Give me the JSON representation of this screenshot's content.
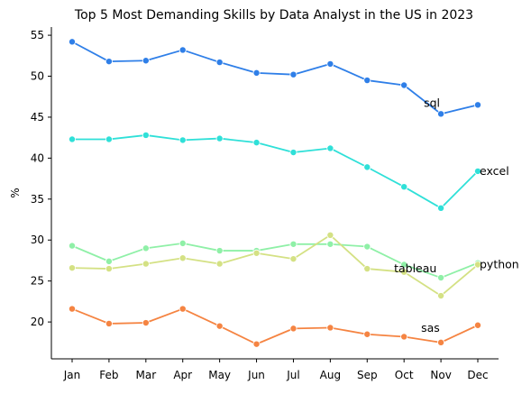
{
  "chart_data": {
    "type": "line",
    "title": "Top 5 Most Demanding Skills by Data Analyst in the US in 2023",
    "xlabel": "",
    "ylabel": "%",
    "categories": [
      "Jan",
      "Feb",
      "Mar",
      "Apr",
      "May",
      "Jun",
      "Jul",
      "Aug",
      "Sep",
      "Oct",
      "Nov",
      "Dec"
    ],
    "ylim": [
      15.5,
      56
    ],
    "yticks": [
      20,
      25,
      30,
      35,
      40,
      45,
      50,
      55
    ],
    "grid": false,
    "legend": "inline labels near series ends",
    "series": [
      {
        "name": "sql",
        "color": "#2f7fe8",
        "values": [
          54.2,
          51.8,
          51.9,
          53.2,
          51.7,
          50.4,
          50.2,
          51.5,
          49.5,
          48.9,
          45.4,
          46.5
        ]
      },
      {
        "name": "excel",
        "color": "#2fe0d8",
        "values": [
          42.3,
          42.3,
          42.8,
          42.2,
          42.4,
          41.9,
          40.7,
          41.2,
          38.9,
          36.5,
          33.9,
          38.4
        ]
      },
      {
        "name": "tableau",
        "color": "#8ff0a7",
        "values": [
          29.3,
          27.4,
          29.0,
          29.6,
          28.7,
          28.7,
          29.5,
          29.5,
          29.2,
          27.0,
          25.4,
          27.2
        ]
      },
      {
        "name": "python",
        "color": "#d4e184",
        "values": [
          26.6,
          26.5,
          27.1,
          27.8,
          27.1,
          28.4,
          27.7,
          30.6,
          26.5,
          26.1,
          23.2,
          27.0
        ]
      },
      {
        "name": "sas",
        "color": "#f58442",
        "values": [
          21.6,
          19.8,
          19.9,
          21.6,
          19.5,
          17.3,
          19.2,
          19.3,
          18.5,
          18.2,
          17.5,
          19.6
        ]
      }
    ],
    "annotations": [
      {
        "text": "sql",
        "series": "sql"
      },
      {
        "text": "excel",
        "series": "excel"
      },
      {
        "text": "tableau",
        "series": "tableau"
      },
      {
        "text": "python",
        "series": "python"
      },
      {
        "text": "sas",
        "series": "sas"
      }
    ]
  }
}
